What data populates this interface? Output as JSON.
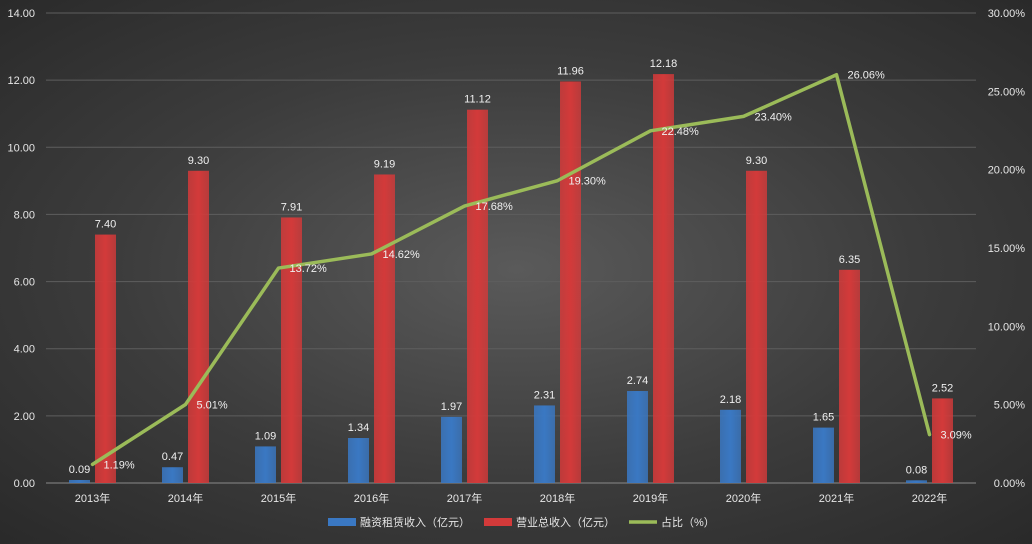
{
  "chart_data": {
    "type": "bar",
    "categories": [
      "2013年",
      "2014年",
      "2015年",
      "2016年",
      "2017年",
      "2018年",
      "2019年",
      "2020年",
      "2021年",
      "2022年"
    ],
    "series": [
      {
        "name": "融资租赁收入（亿元）",
        "type": "bar",
        "axis": "left",
        "color": "#3a78c3",
        "values": [
          0.09,
          0.47,
          1.09,
          1.34,
          1.97,
          2.31,
          2.74,
          2.18,
          1.65,
          0.08
        ],
        "labels": [
          "0.09",
          "0.47",
          "1.09",
          "1.34",
          "1.97",
          "2.31",
          "2.74",
          "2.18",
          "1.65",
          "0.08"
        ]
      },
      {
        "name": "营业总收入（亿元）",
        "type": "bar",
        "axis": "left",
        "color": "#d33a3a",
        "values": [
          7.4,
          9.3,
          7.91,
          9.19,
          11.12,
          11.96,
          12.18,
          9.3,
          6.35,
          2.52
        ],
        "labels": [
          "7.40",
          "9.30",
          "7.91",
          "9.19",
          "11.12",
          "11.96",
          "12.18",
          "9.30",
          "6.35",
          "2.52"
        ]
      },
      {
        "name": "占比（%）",
        "type": "line",
        "axis": "right",
        "color": "#9bbb59",
        "values": [
          1.19,
          5.01,
          13.72,
          14.62,
          17.68,
          19.3,
          22.48,
          23.4,
          26.06,
          3.09
        ],
        "labels": [
          "1.19%",
          "5.01%",
          "13.72%",
          "14.62%",
          "17.68%",
          "19.30%",
          "22.48%",
          "23.40%",
          "26.06%",
          "3.09%"
        ]
      }
    ],
    "ylim_left": [
      0,
      14
    ],
    "yticks_left": [
      "0.00",
      "2.00",
      "4.00",
      "6.00",
      "8.00",
      "10.00",
      "12.00",
      "14.00"
    ],
    "ylim_right": [
      0,
      30
    ],
    "yticks_right": [
      "0.00%",
      "5.00%",
      "10.00%",
      "15.00%",
      "20.00%",
      "25.00%",
      "30.00%"
    ],
    "grid": true,
    "legend_position": "bottom-center",
    "title": "",
    "xlabel": "",
    "ylabel": ""
  }
}
